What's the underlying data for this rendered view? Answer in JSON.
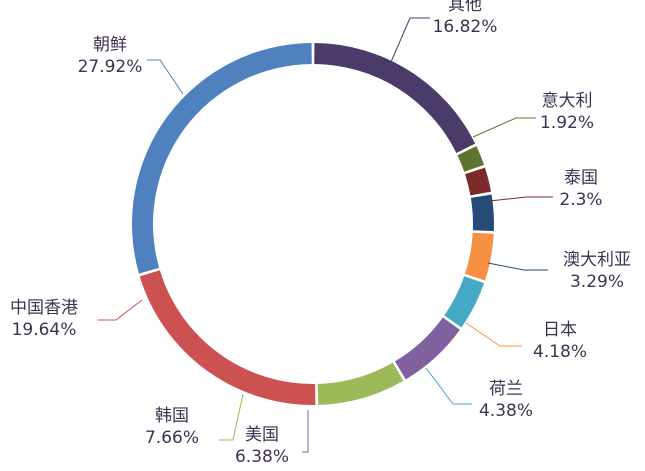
{
  "chart_data": {
    "type": "pie",
    "style": "donut",
    "legend": "none",
    "title": "",
    "slices": [
      {
        "label": "其他",
        "value": 16.82,
        "value_label": "16.82%",
        "color": "#4B3B6A"
      },
      {
        "label": "意大利",
        "value": 1.92,
        "value_label": "1.92%",
        "color": "#5E7431"
      },
      {
        "label": "泰国",
        "value": 2.3,
        "value_label": "2.3%",
        "color": "#7B2C2A"
      },
      {
        "label": "澳大利亚",
        "value": 3.29,
        "value_label": "3.29%",
        "color": "#274B78"
      },
      {
        "label": "日本",
        "value": 4.18,
        "value_label": "4.18%",
        "color": "#F69143"
      },
      {
        "label": "荷兰",
        "value": 4.38,
        "value_label": "4.38%",
        "color": "#45A9C6"
      },
      {
        "label": "美国",
        "value": 6.38,
        "value_label": "6.38%",
        "color": "#7F619F"
      },
      {
        "label": "韩国",
        "value": 7.66,
        "value_label": "7.66%",
        "color": "#9CBA57"
      },
      {
        "label": "中国香港",
        "value": 19.64,
        "value_label": "19.64%",
        "color": "#CB5250"
      },
      {
        "label": "朝鲜",
        "value": 27.92,
        "value_label": "27.92%",
        "color": "#4E81BE"
      }
    ]
  },
  "colors": {
    "label_text": "#3F3251",
    "leader_line": "#8c8c8c"
  }
}
